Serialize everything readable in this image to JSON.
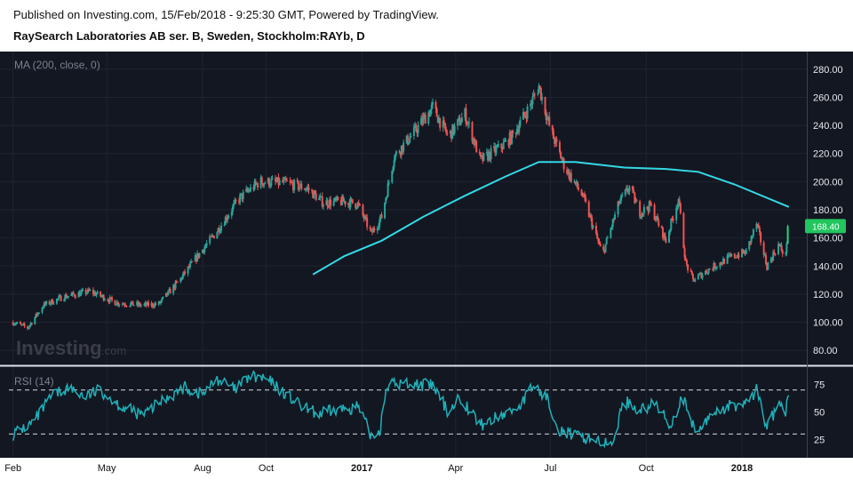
{
  "header": {
    "published": "Published on Investing.com, 15/Feb/2018 - 9:25:30 GMT, Powered by TradingView.",
    "symbol": "RaySearch Laboratories AB ser. B, Sweden, Stockholm:RAYb, D"
  },
  "watermark": {
    "brand": "Investing",
    "suffix": ".com"
  },
  "colors": {
    "background": "#131722",
    "candle_up": "#26a69a",
    "candle_down": "#ef5350",
    "candle_up_bright": "#22d67a",
    "ma_line": "#34d8e6",
    "rsi_line": "#1fb0b8",
    "last_price_tag": "#22c55e"
  },
  "chart_data": [
    {
      "type": "candlestick",
      "legend": "MA (200, close, 0)",
      "ylim": [
        70,
        290
      ],
      "y_ticks": [
        "80.00",
        "100.00",
        "120.00",
        "140.00",
        "160.00",
        "180.00",
        "200.00",
        "220.00",
        "240.00",
        "260.00",
        "280.00"
      ],
      "last_price": "168.40",
      "price_keypoints": [
        [
          "2016-02-01",
          100
        ],
        [
          "2016-02-15",
          96
        ],
        [
          "2016-03-01",
          112
        ],
        [
          "2016-03-20",
          118
        ],
        [
          "2016-04-15",
          122
        ],
        [
          "2016-05-10",
          114
        ],
        [
          "2016-06-05",
          112
        ],
        [
          "2016-06-20",
          113
        ],
        [
          "2016-07-10",
          130
        ],
        [
          "2016-07-25",
          145
        ],
        [
          "2016-08-15",
          165
        ],
        [
          "2016-09-05",
          188
        ],
        [
          "2016-09-25",
          200
        ],
        [
          "2016-10-20",
          199
        ],
        [
          "2016-11-10",
          195
        ],
        [
          "2016-11-25",
          185
        ],
        [
          "2016-12-15",
          186
        ],
        [
          "2016-12-28",
          184
        ],
        [
          "2017-01-10",
          163
        ],
        [
          "2017-01-20",
          175
        ],
        [
          "2017-02-01",
          218
        ],
        [
          "2017-02-20",
          235
        ],
        [
          "2017-03-10",
          253
        ],
        [
          "2017-03-25",
          232
        ],
        [
          "2017-04-10",
          248
        ],
        [
          "2017-04-25",
          215
        ],
        [
          "2017-05-15",
          225
        ],
        [
          "2017-05-25",
          232
        ],
        [
          "2017-06-10",
          252
        ],
        [
          "2017-06-20",
          268
        ],
        [
          "2017-07-01",
          237
        ],
        [
          "2017-07-15",
          210
        ],
        [
          "2017-08-01",
          190
        ],
        [
          "2017-08-20",
          148
        ],
        [
          "2017-09-05",
          185
        ],
        [
          "2017-09-15",
          196
        ],
        [
          "2017-09-25",
          178
        ],
        [
          "2017-10-05",
          183
        ],
        [
          "2017-10-20",
          158
        ],
        [
          "2017-11-01",
          188
        ],
        [
          "2017-11-08",
          142
        ],
        [
          "2017-11-15",
          130
        ],
        [
          "2017-12-01",
          138
        ],
        [
          "2017-12-20",
          146
        ],
        [
          "2018-01-05",
          150
        ],
        [
          "2018-01-15",
          170
        ],
        [
          "2018-01-25",
          140
        ],
        [
          "2018-02-05",
          155
        ],
        [
          "2018-02-12",
          147
        ],
        [
          "2018-02-14",
          168.4
        ]
      ],
      "series": [
        {
          "name": "MA (200, close, 0)",
          "x": [
            "2016-11-15",
            "2016-12-15",
            "2017-01-20",
            "2017-03-01",
            "2017-04-10",
            "2017-05-20",
            "2017-06-20",
            "2017-07-25",
            "2017-09-10",
            "2017-10-20",
            "2017-11-20",
            "2017-12-25",
            "2018-02-15"
          ],
          "y": [
            134,
            147,
            158,
            175,
            190,
            204,
            214,
            214,
            210,
            209,
            207,
            198,
            182
          ]
        }
      ]
    },
    {
      "type": "line",
      "legend": "RSI (14)",
      "ylim": [
        10,
        90
      ],
      "y_ticks": [
        "75",
        "50",
        "25"
      ],
      "guides": [
        70,
        30
      ],
      "keypoints": [
        [
          "2016-02-01",
          30
        ],
        [
          "2016-02-20",
          40
        ],
        [
          "2016-03-10",
          65
        ],
        [
          "2016-03-25",
          72
        ],
        [
          "2016-04-10",
          64
        ],
        [
          "2016-04-25",
          70
        ],
        [
          "2016-05-15",
          55
        ],
        [
          "2016-06-05",
          47
        ],
        [
          "2016-06-25",
          62
        ],
        [
          "2016-07-15",
          72
        ],
        [
          "2016-08-01",
          66
        ],
        [
          "2016-08-15",
          80
        ],
        [
          "2016-09-01",
          70
        ],
        [
          "2016-09-15",
          82
        ],
        [
          "2016-10-01",
          80
        ],
        [
          "2016-10-20",
          66
        ],
        [
          "2016-11-05",
          54
        ],
        [
          "2016-11-20",
          48
        ],
        [
          "2016-12-10",
          52
        ],
        [
          "2016-12-28",
          55
        ],
        [
          "2017-01-10",
          28
        ],
        [
          "2017-01-18",
          33
        ],
        [
          "2017-01-25",
          75
        ],
        [
          "2017-02-15",
          76
        ],
        [
          "2017-03-10",
          74
        ],
        [
          "2017-03-25",
          50
        ],
        [
          "2017-04-05",
          64
        ],
        [
          "2017-04-25",
          38
        ],
        [
          "2017-05-15",
          47
        ],
        [
          "2017-06-01",
          55
        ],
        [
          "2017-06-15",
          74
        ],
        [
          "2017-06-28",
          62
        ],
        [
          "2017-07-10",
          34
        ],
        [
          "2017-07-25",
          28
        ],
        [
          "2017-08-15",
          25
        ],
        [
          "2017-08-28",
          18
        ],
        [
          "2017-09-10",
          60
        ],
        [
          "2017-09-25",
          52
        ],
        [
          "2017-10-10",
          57
        ],
        [
          "2017-10-25",
          38
        ],
        [
          "2017-11-05",
          65
        ],
        [
          "2017-11-12",
          40
        ],
        [
          "2017-11-20",
          32
        ],
        [
          "2017-12-05",
          50
        ],
        [
          "2017-12-20",
          55
        ],
        [
          "2018-01-05",
          58
        ],
        [
          "2018-01-15",
          70
        ],
        [
          "2018-01-25",
          36
        ],
        [
          "2018-02-05",
          57
        ],
        [
          "2018-02-12",
          50
        ],
        [
          "2018-02-15",
          63
        ]
      ]
    }
  ],
  "x_axis": {
    "range": [
      "2016-01-28",
      "2018-02-28"
    ],
    "ticks": [
      {
        "date": "2016-02-01",
        "label": "Feb",
        "bold": false
      },
      {
        "date": "2016-05-01",
        "label": "May",
        "bold": false
      },
      {
        "date": "2016-08-01",
        "label": "Aug",
        "bold": false
      },
      {
        "date": "2016-10-01",
        "label": "Oct",
        "bold": false
      },
      {
        "date": "2017-01-01",
        "label": "2017",
        "bold": true
      },
      {
        "date": "2017-04-01",
        "label": "Apr",
        "bold": false
      },
      {
        "date": "2017-07-01",
        "label": "Jul",
        "bold": false
      },
      {
        "date": "2017-10-01",
        "label": "Oct",
        "bold": false
      },
      {
        "date": "2018-01-01",
        "label": "2018",
        "bold": true
      }
    ]
  }
}
